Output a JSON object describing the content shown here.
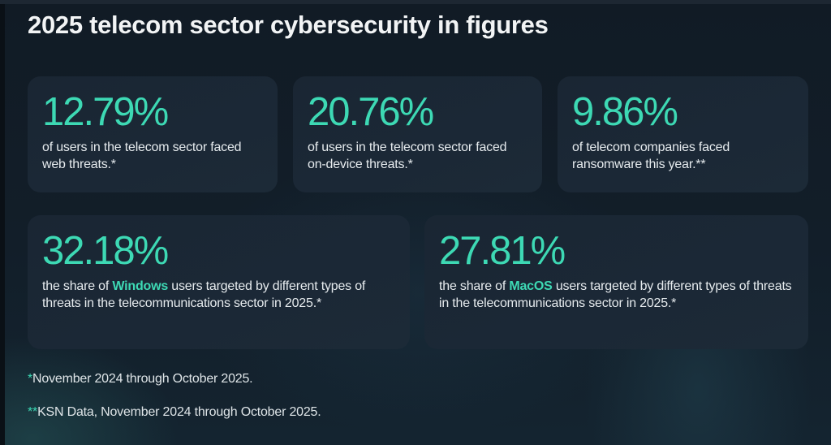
{
  "page": {
    "title": "2025 telecom sector cybersecurity in figures"
  },
  "colors": {
    "accent": "#3dd9b4",
    "background": "#111b25",
    "card": "#1a2633",
    "text": "#e6ebee"
  },
  "stats": [
    {
      "value": "12.79%",
      "description": "of users in the telecom sector faced web threats.*"
    },
    {
      "value": "20.76%",
      "description": "of users in the telecom sector faced on-device threats.*"
    },
    {
      "value": "9.86%",
      "description": "of telecom companies faced ransomware this year.**"
    },
    {
      "value": "32.18%",
      "description_prefix": "the share of ",
      "highlight": "Windows",
      "description_suffix": " users targeted by different types of threats in the telecommunications sector in 2025.*"
    },
    {
      "value": "27.81%",
      "description_prefix": "the share of ",
      "highlight": "MacOS",
      "description_suffix": " users targeted by different types of threats in the telecommunications sector in 2025.*"
    }
  ],
  "footnotes": [
    {
      "marker": "*",
      "text": "November 2024 through October 2025."
    },
    {
      "marker": "**",
      "text": "KSN Data, November 2024 through October 2025."
    }
  ]
}
